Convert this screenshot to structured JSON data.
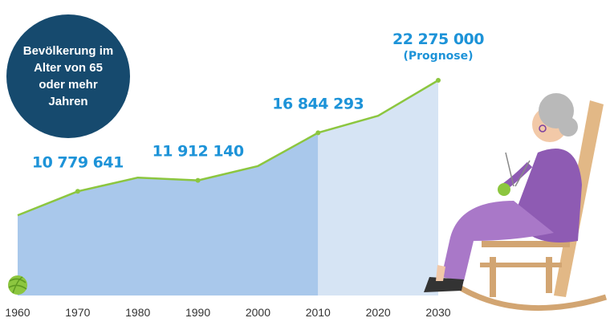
{
  "chart_data": {
    "type": "area",
    "title": "Bevölkerung im Alter von 65 oder mehr Jahren",
    "x": [
      1960,
      1970,
      1980,
      1990,
      2000,
      2010,
      2020,
      2030
    ],
    "values": [
      8300000,
      10779641,
      12200000,
      11912140,
      13400000,
      16844293,
      18600000,
      22275000
    ],
    "value_labels": [
      null,
      "10 779 641",
      null,
      "11 912 140",
      null,
      "16 844 293",
      null,
      "22 275 000"
    ],
    "annotation": "(Prognose)",
    "color": "#8cc63f",
    "area_color": "#a9c8eb",
    "forecast_color": "#d6e4f4"
  }
}
